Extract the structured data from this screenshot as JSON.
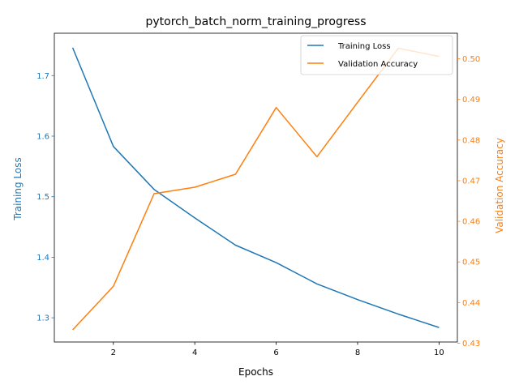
{
  "chart_data": {
    "type": "line",
    "title": "pytorch_batch_norm_training_progress",
    "xlabel": "Epochs",
    "ylabel_left": "Training Loss",
    "ylabel_right": "Validation Accuracy",
    "x": [
      1,
      2,
      3,
      4,
      5,
      6,
      7,
      8,
      9,
      10
    ],
    "xlim": [
      0.55,
      10.45
    ],
    "xticks": [
      2,
      4,
      6,
      8,
      10
    ],
    "ylim_left": [
      1.26,
      1.77
    ],
    "yticks_left": [
      1.3,
      1.4,
      1.5,
      1.6,
      1.7
    ],
    "ylim_right": [
      0.4303,
      0.5063
    ],
    "yticks_right": [
      0.43,
      0.44,
      0.45,
      0.46,
      0.47,
      0.48,
      0.49,
      0.5
    ],
    "grid": false,
    "legend_position": "top-right",
    "series": [
      {
        "name": "Training Loss",
        "axis": "left",
        "color": "#1f77b4",
        "values": [
          1.746,
          1.583,
          1.512,
          1.465,
          1.42,
          1.391,
          1.356,
          1.33,
          1.306,
          1.284
        ]
      },
      {
        "name": "Validation Accuracy",
        "axis": "right",
        "color": "#ff7f0e",
        "values": [
          0.4333,
          0.444,
          0.4668,
          0.4684,
          0.4716,
          0.488,
          0.4759,
          0.4893,
          0.5026,
          0.5006
        ]
      }
    ]
  }
}
